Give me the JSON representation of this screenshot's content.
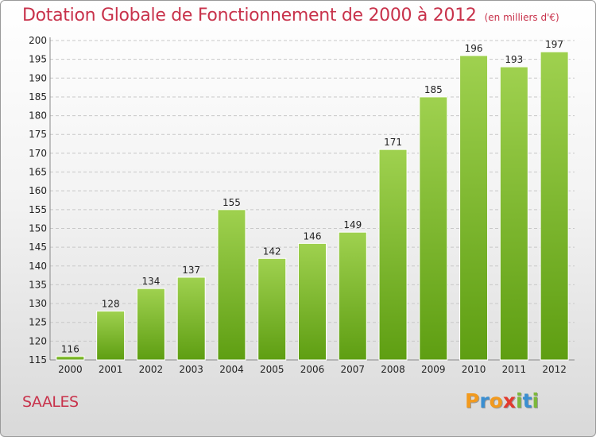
{
  "title": "Dotation Globale de Fonctionnement de 2000 à 2012",
  "subtitle": "(en milliers d'€)",
  "commune": "SAALES",
  "logo": {
    "letters": [
      "P",
      "r",
      "o",
      "x",
      "i",
      "t",
      "i"
    ],
    "colors": [
      "#f29a1e",
      "#3b8fd1",
      "#f29a1e",
      "#e23a2e",
      "#7cb83a",
      "#3b8fd1",
      "#7cb83a"
    ]
  },
  "colors": {
    "bar_light": "#9fd14f",
    "bar_dark": "#5e9e12",
    "accent": "#c8324b"
  },
  "chart_data": {
    "type": "bar",
    "title": "Dotation Globale de Fonctionnement de 2000 à 2012",
    "subtitle": "(en milliers d'€)",
    "xlabel": "",
    "ylabel": "",
    "categories": [
      "2000",
      "2001",
      "2002",
      "2003",
      "2004",
      "2005",
      "2006",
      "2007",
      "2008",
      "2009",
      "2010",
      "2011",
      "2012"
    ],
    "values": [
      116,
      128,
      134,
      137,
      155,
      142,
      146,
      149,
      171,
      185,
      196,
      193,
      197
    ],
    "ylim": [
      115,
      200
    ],
    "yticks": [
      115,
      120,
      125,
      130,
      135,
      140,
      145,
      150,
      155,
      160,
      165,
      170,
      175,
      180,
      185,
      190,
      195,
      200
    ],
    "grid": "horizontal dashed"
  }
}
